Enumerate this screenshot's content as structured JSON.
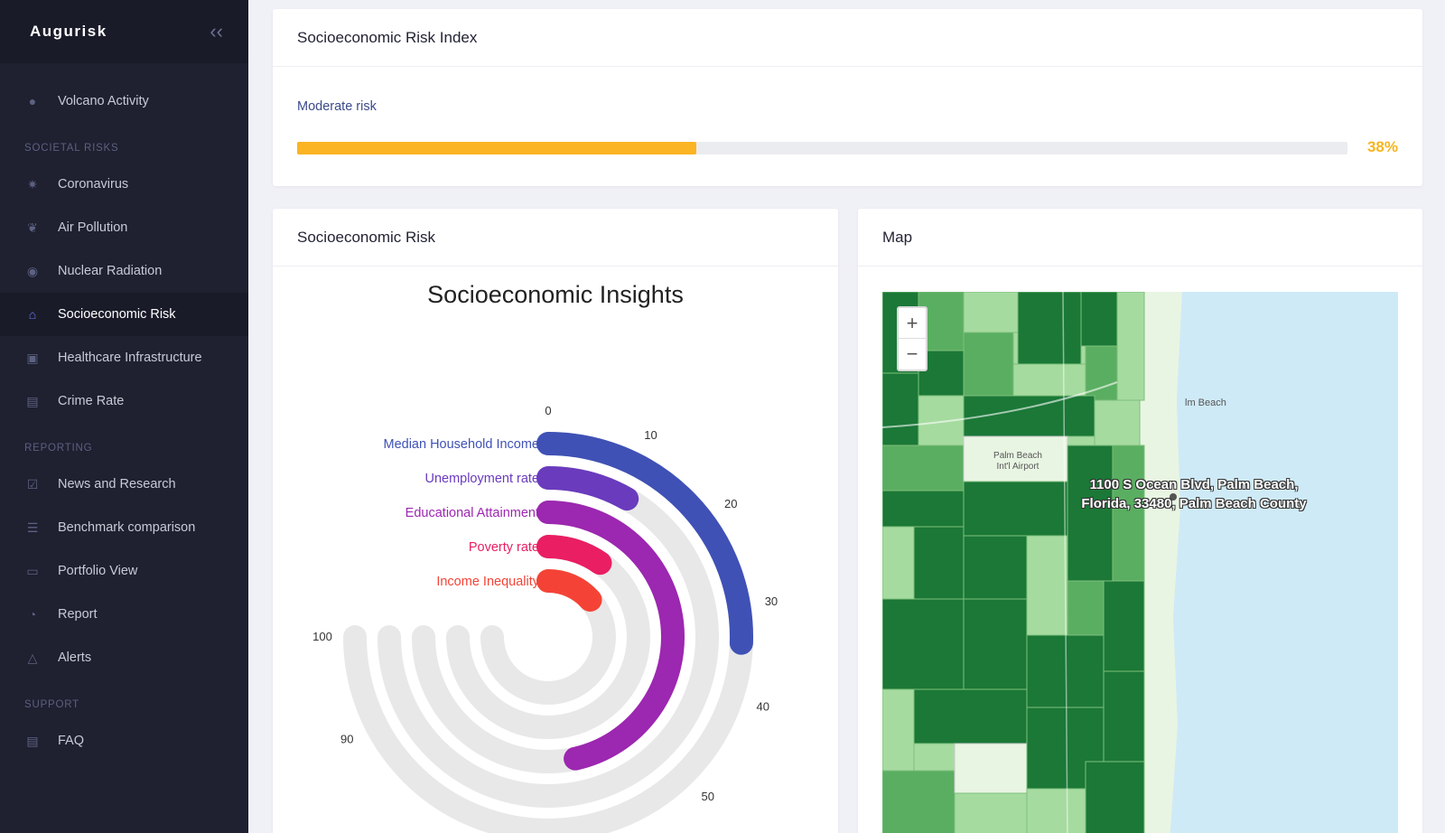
{
  "sidebar": {
    "brand": "Augurisk",
    "collapse_icon": "chevron-double-left-icon",
    "items_top": [
      {
        "label": "Volcano Activity",
        "icon": "globe-icon"
      }
    ],
    "sections": [
      {
        "title": "SOCIETAL RISKS",
        "items": [
          {
            "label": "Coronavirus",
            "icon": "virus-icon"
          },
          {
            "label": "Air Pollution",
            "icon": "leaf-icon"
          },
          {
            "label": "Nuclear Radiation",
            "icon": "radiation-icon"
          },
          {
            "label": "Socioeconomic Risk",
            "icon": "bank-icon",
            "active": true
          },
          {
            "label": "Healthcare Infrastructure",
            "icon": "ambulance-icon"
          },
          {
            "label": "Crime Rate",
            "icon": "police-car-icon"
          }
        ]
      },
      {
        "title": "REPORTING",
        "items": [
          {
            "label": "News and Research",
            "icon": "calendar-check-icon"
          },
          {
            "label": "Benchmark comparison",
            "icon": "list-check-icon"
          },
          {
            "label": "Portfolio View",
            "icon": "briefcase-icon"
          },
          {
            "label": "Report",
            "icon": "pie-chart-icon"
          },
          {
            "label": "Alerts",
            "icon": "warning-icon"
          }
        ]
      },
      {
        "title": "SUPPORT",
        "items": [
          {
            "label": "FAQ",
            "icon": "document-icon"
          }
        ]
      }
    ]
  },
  "risk_index": {
    "title": "Socioeconomic Risk Index",
    "level_label": "Moderate risk",
    "percent": 38,
    "percent_label": "38%",
    "bar_color": "#fbb423"
  },
  "socio_card": {
    "title": "Socioeconomic Risk"
  },
  "chart_data": {
    "type": "radialBar",
    "title": "Socioeconomic Insights",
    "axis": {
      "min": 0,
      "max": 100,
      "ticks": [
        0,
        10,
        20,
        30,
        40,
        50,
        90,
        100
      ]
    },
    "series": [
      {
        "name": "Median Household Income",
        "value": 34,
        "color": "#3f51b5"
      },
      {
        "name": "Unemployment rate",
        "value": 11,
        "color": "#6a3bbd"
      },
      {
        "name": "Educational Attainment",
        "value": 62,
        "color": "#9c27b0"
      },
      {
        "name": "Poverty rate",
        "value": 13,
        "color": "#e91e63"
      },
      {
        "name": "Income Inequality",
        "value": 18,
        "color": "#f44336"
      }
    ]
  },
  "map_card": {
    "title": "Map",
    "zoom_in": "+",
    "zoom_out": "−",
    "address_line1": "1100 S Ocean Blvd, Palm Beach,",
    "address_line2": "Florida, 33480, Palm Beach County",
    "place_label": "lm Beach",
    "airport_line1": "Palm Beach",
    "airport_line2": "Int'l Airport"
  }
}
